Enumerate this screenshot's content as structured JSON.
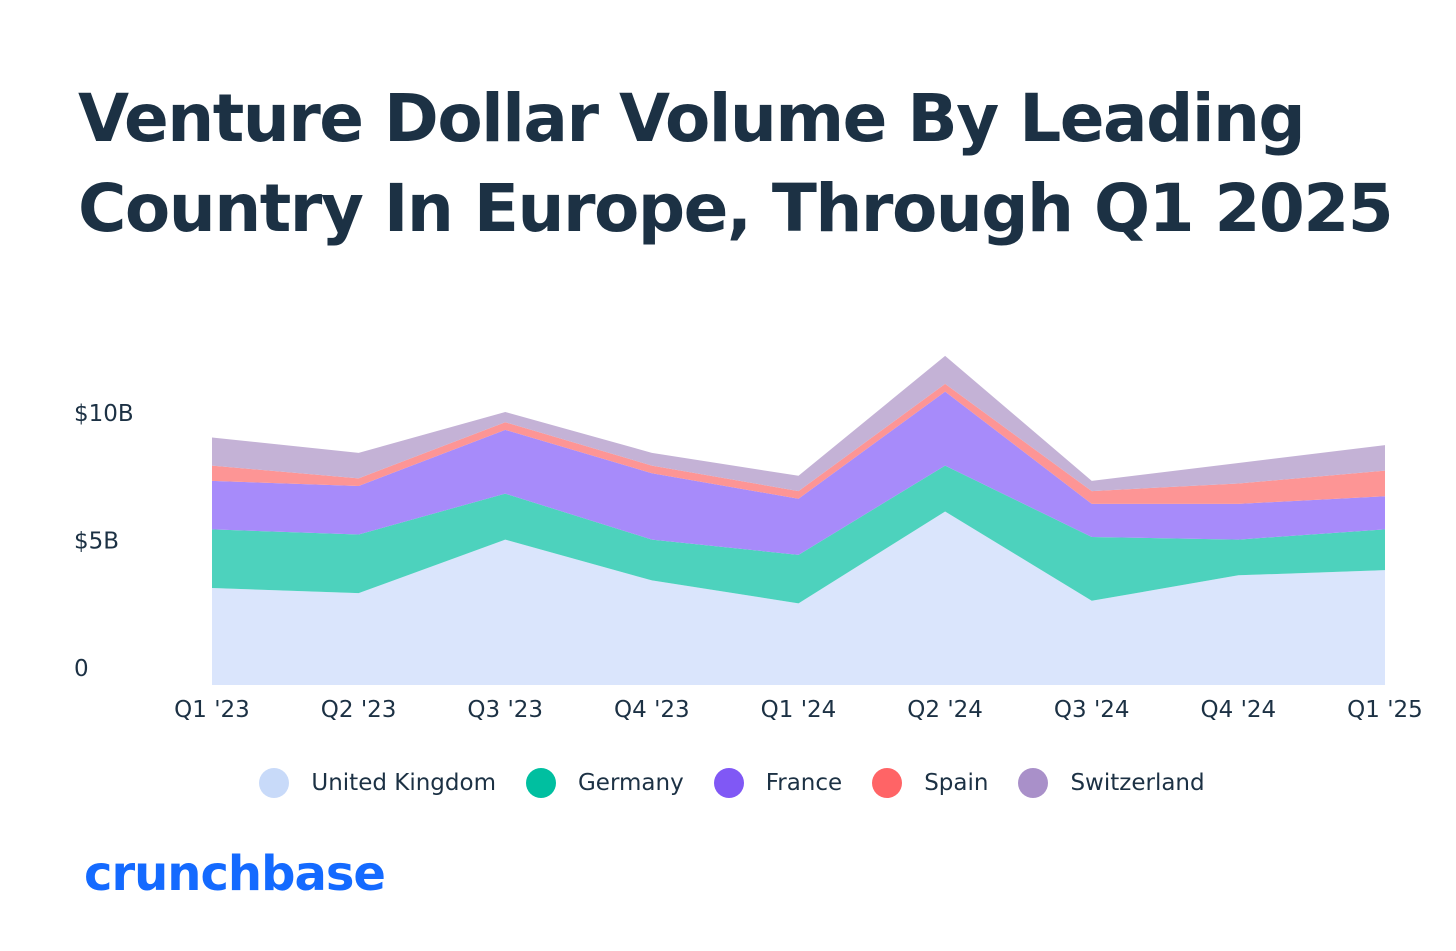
{
  "title": {
    "line1": "Venture Dollar Volume By Leading",
    "line2": "Country In Europe, Through Q1 2025"
  },
  "brand": {
    "logo_text": "crunchbase",
    "color": "#146aff"
  },
  "chart_data": {
    "type": "area",
    "stacked": true,
    "title": "Venture Dollar Volume By Leading Country In Europe, Through Q1 2025",
    "xlabel": "",
    "ylabel": "",
    "ylim": [
      0,
      13
    ],
    "yticks": [
      {
        "value": 0,
        "label": "0"
      },
      {
        "value": 5,
        "label": "$5B"
      },
      {
        "value": 10,
        "label": "$10B"
      }
    ],
    "grid": false,
    "legend_position": "bottom",
    "categories": [
      "Q1 '23",
      "Q2 '23",
      "Q3 '23",
      "Q4 '23",
      "Q1 '24",
      "Q2 '24",
      "Q3 '24",
      "Q4 '24",
      "Q1 '25"
    ],
    "series": [
      {
        "name": "United Kingdom",
        "color": "#dae5fc",
        "legend_color": "#c8daf9",
        "values": [
          3.8,
          3.6,
          5.7,
          4.1,
          3.2,
          6.8,
          3.3,
          4.3,
          4.5
        ]
      },
      {
        "name": "Germany",
        "color": "#4dd2bd",
        "legend_color": "#00bfa0",
        "values": [
          2.3,
          2.3,
          1.8,
          1.6,
          1.9,
          1.8,
          2.5,
          1.4,
          1.6
        ]
      },
      {
        "name": "France",
        "color": "#a78bfa",
        "legend_color": "#8058f5",
        "values": [
          1.9,
          1.9,
          2.5,
          2.6,
          2.2,
          2.9,
          1.3,
          1.4,
          1.3
        ]
      },
      {
        "name": "Spain",
        "color": "#fd9595",
        "legend_color": "#ff6466",
        "values": [
          0.6,
          0.3,
          0.3,
          0.3,
          0.3,
          0.3,
          0.5,
          0.8,
          1.0
        ]
      },
      {
        "name": "Switzerland",
        "color": "#c4b2d6",
        "legend_color": "#a990c9",
        "values": [
          1.1,
          1.0,
          0.4,
          0.5,
          0.6,
          1.1,
          0.4,
          0.8,
          1.0
        ]
      }
    ]
  }
}
